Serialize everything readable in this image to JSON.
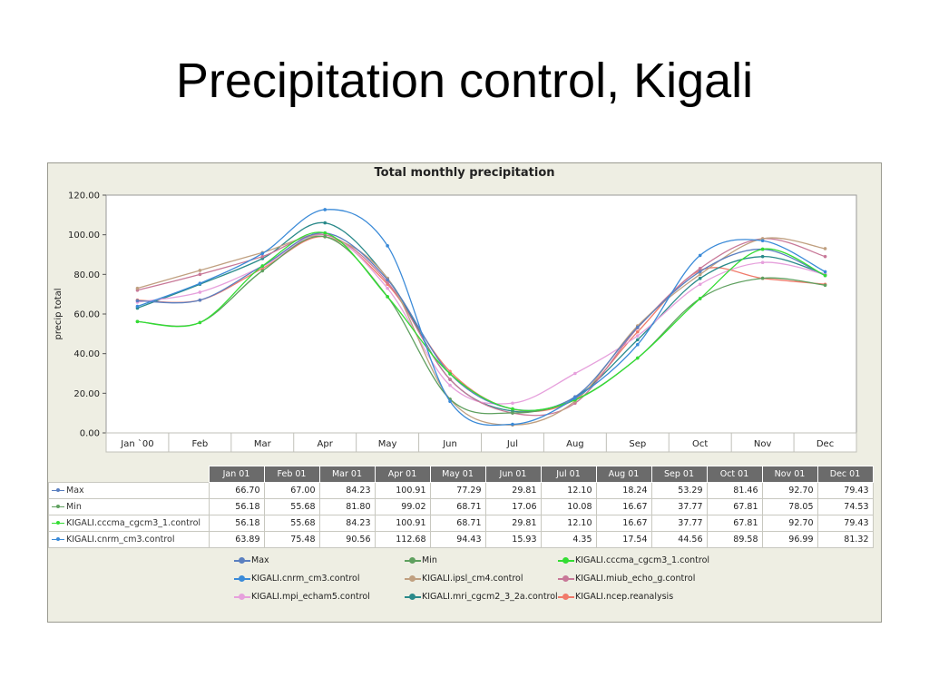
{
  "slide": {
    "title": "Precipitation control, Kigali"
  },
  "chart_data": {
    "type": "line",
    "title": "Total monthly precipitation",
    "xlabel": "",
    "ylabel": "precip total",
    "ylim": [
      0,
      120
    ],
    "yticks": [
      "0.00",
      "20.00",
      "40.00",
      "60.00",
      "80.00",
      "100.00",
      "120.00"
    ],
    "categories": [
      "Jan `00",
      "Feb",
      "Mar",
      "Apr",
      "May",
      "Jun",
      "Jul",
      "Aug",
      "Sep",
      "Oct",
      "Nov",
      "Dec"
    ],
    "grid": false,
    "legend_position": "bottom",
    "series": [
      {
        "name": "Max",
        "color": "#5a7fc0",
        "marker": "triangle",
        "values": [
          66.7,
          67.0,
          84.23,
          100.91,
          77.29,
          29.81,
          12.1,
          18.24,
          53.29,
          81.46,
          92.7,
          79.43
        ]
      },
      {
        "name": "Min",
        "color": "#5fa05f",
        "marker": "triangle",
        "values": [
          56.18,
          55.68,
          81.8,
          99.02,
          68.71,
          17.06,
          10.08,
          16.67,
          37.77,
          67.81,
          78.05,
          74.53
        ]
      },
      {
        "name": "KIGALI.cccma_cgcm3_1.control",
        "color": "#33dd33",
        "marker": "circle",
        "values": [
          56.18,
          55.68,
          84.23,
          100.91,
          68.71,
          29.81,
          12.1,
          16.67,
          37.77,
          67.81,
          92.7,
          79.43
        ]
      },
      {
        "name": "KIGALI.cnrm_cm3.control",
        "color": "#3a8ad8",
        "marker": "circle",
        "values": [
          63.89,
          75.48,
          90.56,
          112.68,
          94.43,
          15.93,
          4.35,
          17.54,
          44.56,
          89.58,
          96.99,
          81.32
        ]
      },
      {
        "name": "KIGALI.ipsl_cm4.control",
        "color": "#c0a080",
        "marker": "circle",
        "values": [
          73,
          82,
          91,
          99,
          78,
          17,
          4,
          16,
          54,
          80,
          98,
          93
        ]
      },
      {
        "name": "KIGALI.miub_echo_g.control",
        "color": "#c87898",
        "marker": "circle",
        "values": [
          72,
          80,
          89,
          100,
          76,
          27,
          10,
          15,
          53,
          83,
          98,
          89
        ]
      },
      {
        "name": "KIGALI.mpi_echam5.control",
        "color": "#e6a0dc",
        "marker": "circle",
        "values": [
          66,
          71,
          84,
          100,
          73,
          24,
          15,
          30,
          49,
          75,
          86,
          80
        ]
      },
      {
        "name": "KIGALI.mri_cgcm2_3_2a.control",
        "color": "#2a8a8a",
        "marker": "circle",
        "values": [
          63,
          75,
          88,
          106,
          78,
          27,
          11,
          18,
          47,
          78,
          89,
          80
        ]
      },
      {
        "name": "KIGALI.ncep.reanalysis",
        "color": "#f07a6a",
        "marker": "circle",
        "values": [
          67,
          67,
          83,
          99,
          75,
          31,
          12,
          17,
          51,
          82,
          78,
          75
        ]
      }
    ]
  },
  "table": {
    "headers": [
      "Jan 01",
      "Feb 01",
      "Mar 01",
      "Apr 01",
      "May 01",
      "Jun 01",
      "Jul 01",
      "Aug 01",
      "Sep 01",
      "Oct 01",
      "Nov 01",
      "Dec 01"
    ],
    "rows": [
      {
        "name": "Max",
        "color": "#5a7fc0",
        "values": [
          "66.70",
          "67.00",
          "84.23",
          "100.91",
          "77.29",
          "29.81",
          "12.10",
          "18.24",
          "53.29",
          "81.46",
          "92.70",
          "79.43"
        ]
      },
      {
        "name": "Min",
        "color": "#5fa05f",
        "values": [
          "56.18",
          "55.68",
          "81.80",
          "99.02",
          "68.71",
          "17.06",
          "10.08",
          "16.67",
          "37.77",
          "67.81",
          "78.05",
          "74.53"
        ]
      },
      {
        "name": "KIGALI.cccma_cgcm3_1.control",
        "color": "#33dd33",
        "values": [
          "56.18",
          "55.68",
          "84.23",
          "100.91",
          "68.71",
          "29.81",
          "12.10",
          "16.67",
          "37.77",
          "67.81",
          "92.70",
          "79.43"
        ]
      },
      {
        "name": "KIGALI.cnrm_cm3.control",
        "color": "#3a8ad8",
        "values": [
          "63.89",
          "75.48",
          "90.56",
          "112.68",
          "94.43",
          "15.93",
          "4.35",
          "17.54",
          "44.56",
          "89.58",
          "96.99",
          "81.32"
        ]
      }
    ]
  },
  "legend": {
    "items": [
      {
        "label": "Max",
        "color": "#5a7fc0"
      },
      {
        "label": "Min",
        "color": "#5fa05f"
      },
      {
        "label": "KIGALI.cccma_cgcm3_1.control",
        "color": "#33dd33"
      },
      {
        "label": "KIGALI.cnrm_cm3.control",
        "color": "#3a8ad8"
      },
      {
        "label": "KIGALI.ipsl_cm4.control",
        "color": "#c0a080"
      },
      {
        "label": "KIGALI.miub_echo_g.control",
        "color": "#c87898"
      },
      {
        "label": "KIGALI.mpi_echam5.control",
        "color": "#e6a0dc"
      },
      {
        "label": "KIGALI.mri_cgcm2_3_2a.control",
        "color": "#2a8a8a"
      },
      {
        "label": "KIGALI.ncep.reanalysis",
        "color": "#f07a6a"
      }
    ]
  }
}
